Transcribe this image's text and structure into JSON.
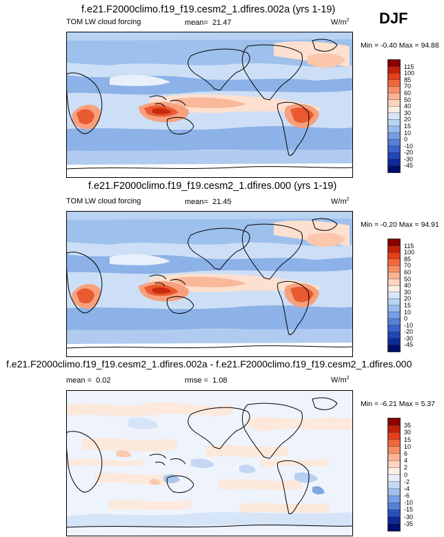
{
  "season": "DJF",
  "panels": [
    {
      "title": "f.e21.F2000climo.f19_f19.cesm2_1.dfires.002a (yrs 1-19)",
      "left_label": "TOM LW cloud forcing",
      "mean_label": "mean=",
      "mean_value": "21.47",
      "rmse_label": "",
      "rmse_value": "",
      "units": "W/m",
      "units_exp": "2",
      "min_label": "Min =",
      "min_value": "-0.40",
      "max_label": "Max =",
      "max_value": "94.88",
      "levels": [
        "115",
        "100",
        "85",
        "70",
        "60",
        "50",
        "40",
        "30",
        "20",
        "15",
        "10",
        "0",
        "-10",
        "-20",
        "-30",
        "-45"
      ],
      "colors": [
        "#8c0000",
        "#c4200a",
        "#e8401a",
        "#f2683e",
        "#f79066",
        "#fbb394",
        "#fdd4bf",
        "#fcefe6",
        "#d8e7f8",
        "#bad4f2",
        "#98bcec",
        "#779fe3",
        "#5680d8",
        "#3a63cc",
        "#2146b8",
        "#0d2a9a",
        "#000e6e"
      ]
    },
    {
      "title": "f.e21.F2000climo.f19_f19.cesm2_1.dfires.000 (yrs 1-19)",
      "left_label": "TOM LW cloud forcing",
      "mean_label": "mean=",
      "mean_value": "21.45",
      "rmse_label": "",
      "rmse_value": "",
      "units": "W/m",
      "units_exp": "2",
      "min_label": "Min =",
      "min_value": "-0.20",
      "max_label": "Max =",
      "max_value": "94.91",
      "levels": [
        "115",
        "100",
        "85",
        "70",
        "60",
        "50",
        "40",
        "30",
        "20",
        "15",
        "10",
        "0",
        "-10",
        "-20",
        "-30",
        "-45"
      ],
      "colors": [
        "#8c0000",
        "#c4200a",
        "#e8401a",
        "#f2683e",
        "#f79066",
        "#fbb394",
        "#fdd4bf",
        "#fcefe6",
        "#d8e7f8",
        "#bad4f2",
        "#98bcec",
        "#779fe3",
        "#5680d8",
        "#3a63cc",
        "#2146b8",
        "#0d2a9a",
        "#000e6e"
      ]
    },
    {
      "title": "f.e21.F2000climo.f19_f19.cesm2_1.dfires.002a - f.e21.F2000climo.f19_f19.cesm2_1.dfires.000",
      "left_label": "",
      "mean_label": "mean =",
      "mean_value": "0.02",
      "rmse_label": "rmse =",
      "rmse_value": "1.08",
      "units": "W/m",
      "units_exp": "2",
      "min_label": "Min =",
      "min_value": "-6.21",
      "max_label": "Max =",
      "max_value": "5.37",
      "levels": [
        "35",
        "30",
        "15",
        "10",
        "6",
        "4",
        "2",
        "0",
        "-2",
        "-4",
        "-6",
        "-10",
        "-15",
        "-30",
        "-35"
      ],
      "colors": [
        "#8c0000",
        "#c4200a",
        "#e8401a",
        "#f2683e",
        "#f79066",
        "#fbb394",
        "#fdd4bf",
        "#fcefe6",
        "#e6eefa",
        "#c6daf4",
        "#9fc0ec",
        "#779fe3",
        "#5680d8",
        "#2a50c0",
        "#0d2a9a",
        "#000e6e"
      ]
    }
  ],
  "chart_data": [
    {
      "type": "heatmap",
      "title": "f.e21.F2000climo.f19_f19.cesm2_1.dfires.002a (yrs 1-19)",
      "variable": "TOM LW cloud forcing",
      "season": "DJF",
      "units": "W/m2",
      "mean": 21.47,
      "min": -0.4,
      "max": 94.88,
      "contour_levels": [
        -45,
        -30,
        -20,
        -10,
        0,
        10,
        15,
        20,
        30,
        40,
        50,
        60,
        70,
        85,
        100,
        115
      ]
    },
    {
      "type": "heatmap",
      "title": "f.e21.F2000climo.f19_f19.cesm2_1.dfires.000 (yrs 1-19)",
      "variable": "TOM LW cloud forcing",
      "season": "DJF",
      "units": "W/m2",
      "mean": 21.45,
      "min": -0.2,
      "max": 94.91,
      "contour_levels": [
        -45,
        -30,
        -20,
        -10,
        0,
        10,
        15,
        20,
        30,
        40,
        50,
        60,
        70,
        85,
        100,
        115
      ]
    },
    {
      "type": "heatmap",
      "title": "f.e21.F2000climo.f19_f19.cesm2_1.dfires.002a - f.e21.F2000climo.f19_f19.cesm2_1.dfires.000",
      "season": "DJF",
      "units": "W/m2",
      "mean": 0.02,
      "rmse": 1.08,
      "min": -6.21,
      "max": 5.37,
      "contour_levels": [
        -35,
        -30,
        -15,
        -10,
        -6,
        -4,
        -2,
        0,
        2,
        4,
        6,
        10,
        15,
        30,
        35
      ]
    }
  ]
}
